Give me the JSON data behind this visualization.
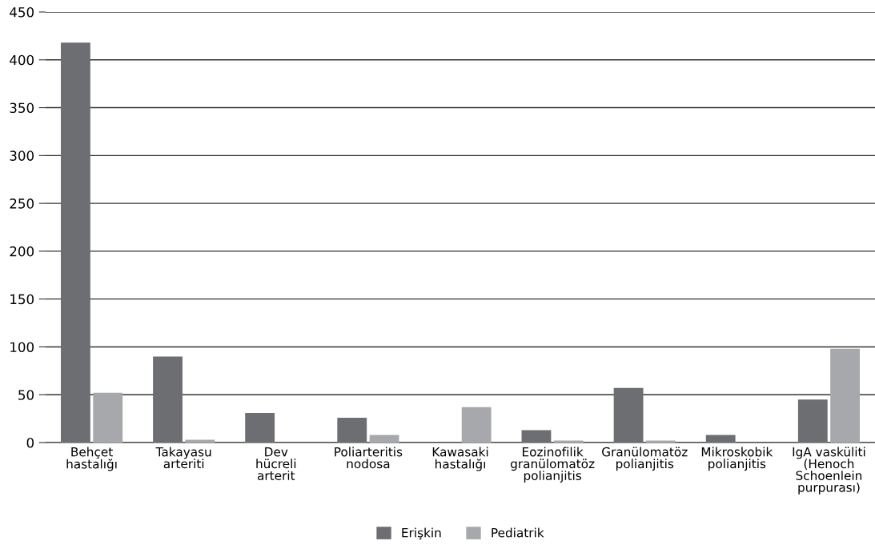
{
  "chart_data": {
    "type": "bar",
    "categories": [
      "Behçet\nhastalığı",
      "Takayasu\narteriti",
      "Dev\nhücreli\narterit",
      "Poliarteritis\nnodosa",
      "Kawasaki\nhastalığı",
      "Eozinofilik\ngranülomatöz\npolianjitis",
      "Granülomatöz\npolianjitis",
      "Mikroskobik\npolianjitis",
      "IgA vasküliti\n(Henoch\nSchoenlein\npurpurası)"
    ],
    "series": [
      {
        "name": "Erişkin",
        "color": "#6d6e72",
        "values": [
          418,
          90,
          31,
          26,
          null,
          13,
          57,
          8,
          45
        ]
      },
      {
        "name": "Pediatrik",
        "color": "#a7a8ab",
        "values": [
          52,
          3,
          null,
          8,
          37,
          2,
          2,
          null,
          98
        ]
      }
    ],
    "ylim": [
      0,
      450
    ],
    "yticks": [
      0,
      50,
      100,
      150,
      200,
      250,
      300,
      350,
      400,
      450
    ],
    "grid": "y",
    "legend": "bottom"
  }
}
